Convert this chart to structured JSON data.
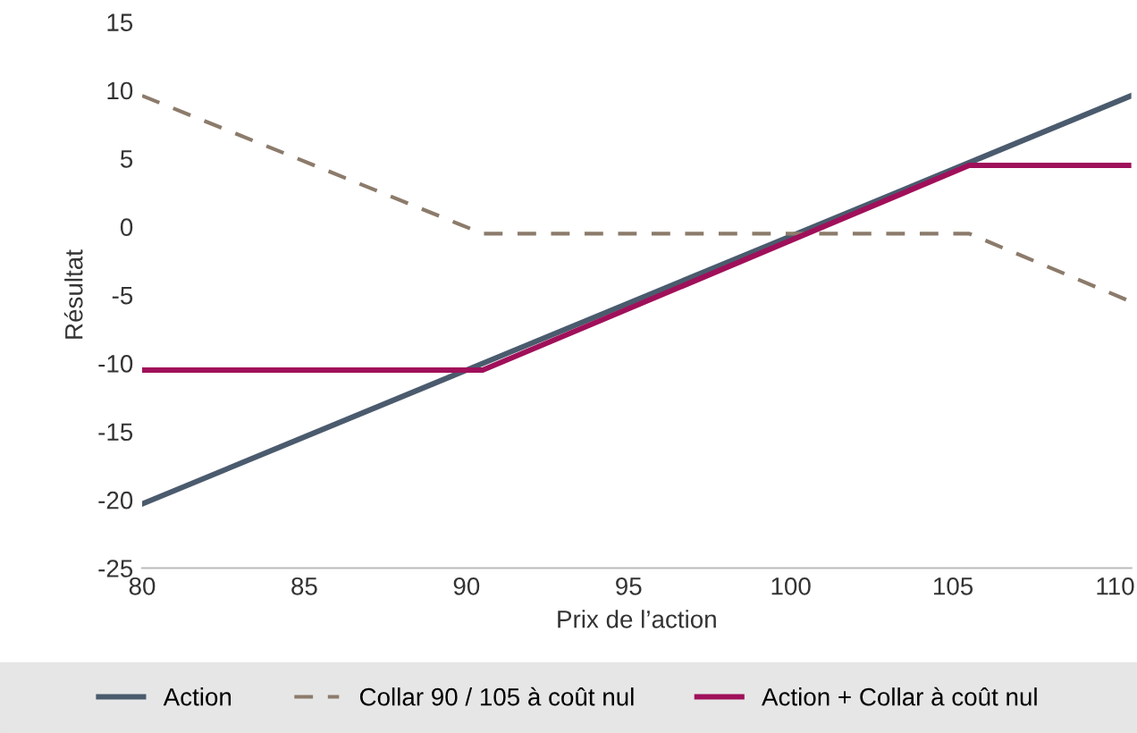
{
  "chart_data": {
    "type": "line",
    "xlabel": "Prix de l’action",
    "ylabel": "Résultat",
    "xlim": [
      80,
      110.5
    ],
    "xticks": [
      80,
      85,
      90,
      95,
      100,
      105,
      110
    ],
    "ylim": [
      -25,
      15
    ],
    "yticks": [
      -25,
      -20,
      -15,
      -10,
      -5,
      0,
      5,
      10,
      15
    ],
    "grid": false,
    "legend": "bottom",
    "marker": "none",
    "series": [
      {
        "name": "Action",
        "color": "#4b5b6e",
        "line_style": "solid",
        "x": [
          80,
          110.5
        ],
        "values": [
          -20.3,
          9.6
        ]
      },
      {
        "name": "Collar 90 / 105 à coût nul",
        "color": "#8c7b6b",
        "line_style": "dashed",
        "x": [
          80,
          90.5,
          105.5,
          110.5
        ],
        "values": [
          9.6,
          -0.5,
          -0.5,
          -5.5
        ]
      },
      {
        "name": "Action + Collar à coût nul",
        "color": "#a0105a",
        "line_style": "solid",
        "x": [
          80,
          90.5,
          105.5,
          110.5
        ],
        "values": [
          -10.5,
          -10.5,
          4.5,
          4.5
        ]
      }
    ]
  }
}
